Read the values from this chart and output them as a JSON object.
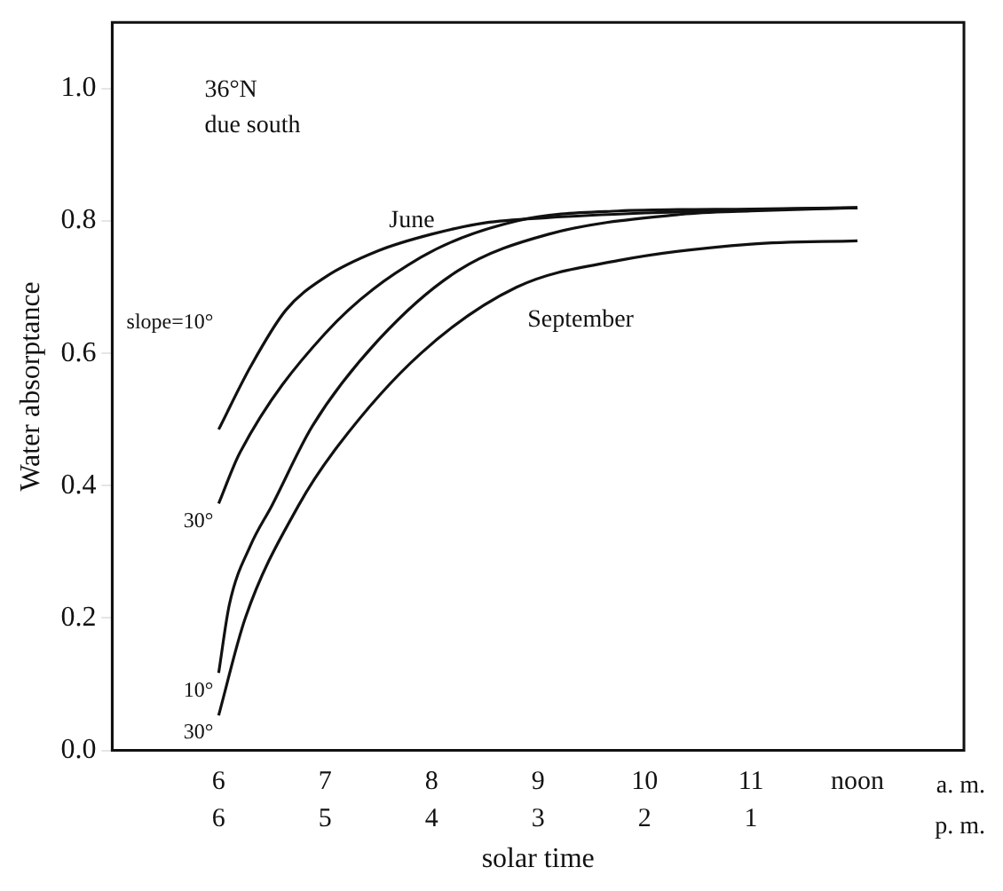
{
  "chart_data": {
    "type": "line",
    "xlabel": "solar time",
    "ylabel": "Water absorptance",
    "xlim": [
      5,
      13
    ],
    "ylim": [
      0,
      1.1
    ],
    "xticks": [
      6,
      7,
      8,
      9,
      10,
      11,
      {
        "value": 12,
        "label": "noon"
      }
    ],
    "x2lim": [
      7,
      -1
    ],
    "x2ticks": [
      6,
      5,
      4,
      3,
      2,
      1
    ],
    "yticks": [
      {
        "value": 0,
        "label": "0.0"
      },
      {
        "value": 0.2,
        "label": "0.2"
      },
      {
        "value": 0.4,
        "label": "0.4"
      },
      {
        "value": 0.6,
        "label": "0.6"
      },
      {
        "value": 0.8,
        "label": "0.8"
      },
      {
        "value": 1,
        "label": "1.0"
      }
    ],
    "grid": false,
    "legend": false,
    "marker": "none",
    "line_style": "solid",
    "series": [
      {
        "name": "slope=10°",
        "color": "#111111",
        "x": [
          6,
          6.3,
          6.63,
          7,
          7.5,
          8,
          8.5,
          9.1,
          10,
          11,
          12
        ],
        "values": [
          0.485,
          0.58,
          0.665,
          0.715,
          0.755,
          0.78,
          0.797,
          0.805,
          0.812,
          0.817,
          0.82
        ]
      },
      {
        "name": "30°",
        "color": "#111111",
        "x": [
          6,
          6.2,
          7,
          7.9,
          8.8,
          9.75,
          11,
          12
        ],
        "values": [
          0.373,
          0.45,
          0.63,
          0.745,
          0.8,
          0.815,
          0.818,
          0.82
        ]
      },
      {
        "name": "10°",
        "color": "#111111",
        "x": [
          6,
          6.1,
          6.3,
          6.5,
          6.88,
          7.5,
          8.25,
          9.1,
          10.35,
          11,
          12
        ],
        "values": [
          0.117,
          0.22,
          0.31,
          0.37,
          0.49,
          0.62,
          0.725,
          0.78,
          0.81,
          0.815,
          0.82
        ]
      },
      {
        "name": "30°",
        "color": "#111111",
        "x": [
          6,
          6.25,
          6.75,
          7.12,
          7.9,
          8.8,
          9.75,
          11,
          12
        ],
        "values": [
          0.053,
          0.2,
          0.37,
          0.46,
          0.6,
          0.7,
          0.74,
          0.765,
          0.77
        ]
      }
    ],
    "annotations": [
      "36°N",
      "due south",
      "a. m.",
      "p. m.",
      "June",
      "September"
    ]
  }
}
